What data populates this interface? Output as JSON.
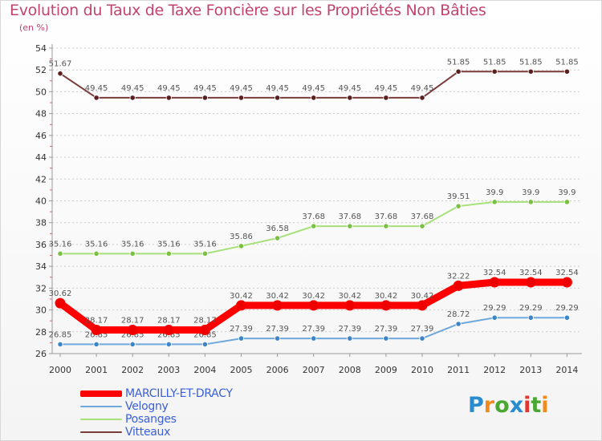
{
  "chart_data": {
    "type": "line",
    "title": "Evolution du Taux de Taxe Foncière sur les Propriétés Non Bâties",
    "ylabel": "(en %)",
    "xlabel": "",
    "categories": [
      "2000",
      "2001",
      "2002",
      "2003",
      "2004",
      "2005",
      "2006",
      "2007",
      "2008",
      "2009",
      "2010",
      "2011",
      "2012",
      "2013",
      "2014"
    ],
    "ylim": [
      26,
      54
    ],
    "yticks": [
      26,
      28,
      30,
      32,
      34,
      36,
      38,
      40,
      42,
      44,
      46,
      48,
      50,
      52,
      54
    ],
    "grid": "horizontal dashed",
    "legend_position": "bottom-left",
    "series": [
      {
        "name": "MARCILLY-ET-DRACY",
        "color": "#ff0000",
        "marker": "#ee0000",
        "values": [
          30.62,
          28.17,
          28.17,
          28.17,
          28.17,
          30.42,
          30.42,
          30.42,
          30.42,
          30.42,
          30.42,
          32.22,
          32.54,
          32.54,
          32.54
        ],
        "labels": [
          "30.62",
          "28.17",
          "28.17",
          "28.17",
          "28.17",
          "30.42",
          "30.42",
          "30.42",
          "30.42",
          "30.42",
          "30.42",
          "32.22",
          "32.54",
          "32.54",
          "32.54"
        ]
      },
      {
        "name": "Velogny",
        "color": "#6fa8dc",
        "marker": "#3d85c6",
        "values": [
          26.85,
          26.85,
          26.85,
          26.85,
          26.85,
          27.39,
          27.39,
          27.39,
          27.39,
          27.39,
          27.39,
          28.72,
          29.29,
          29.29,
          29.29
        ],
        "labels": [
          "26.85",
          "26.85",
          "26.85",
          "26.85",
          "26.85",
          "27.39",
          "27.39",
          "27.39",
          "27.39",
          "27.39",
          "27.39",
          "28.72",
          "29.29",
          "29.29",
          "29.29"
        ]
      },
      {
        "name": "Posanges",
        "color": "#a8e07a",
        "marker": "#7ac143",
        "values": [
          35.16,
          35.16,
          35.16,
          35.16,
          35.16,
          35.86,
          36.58,
          37.68,
          37.68,
          37.68,
          37.68,
          39.51,
          39.9,
          39.9,
          39.9
        ],
        "labels": [
          "35.16",
          "35.16",
          "35.16",
          "35.16",
          "35.16",
          "35.86",
          "36.58",
          "37.68",
          "37.68",
          "37.68",
          "37.68",
          "39.51",
          "39.9",
          "39.9",
          "39.9"
        ]
      },
      {
        "name": "Vitteaux",
        "color": "#7a3b3b",
        "marker": "#5a2020",
        "values": [
          51.67,
          49.45,
          49.45,
          49.45,
          49.45,
          49.45,
          49.45,
          49.45,
          49.45,
          49.45,
          49.45,
          51.85,
          51.85,
          51.85,
          51.85
        ],
        "labels": [
          "51.67",
          "49.45",
          "49.45",
          "49.45",
          "49.45",
          "49.45",
          "49.45",
          "49.45",
          "49.45",
          "49.45",
          "49.45",
          "51.85",
          "51.85",
          "51.85",
          "51.85"
        ]
      }
    ]
  },
  "logo": {
    "text": "Proxiti",
    "letters": [
      "P",
      "r",
      "o",
      "x",
      "i",
      "t",
      "i"
    ],
    "colors": [
      "#2a8ccf",
      "#f08a1a",
      "#4aa832",
      "#2a8ccf",
      "#e2362e",
      "#4aa832",
      "#f08a1a"
    ]
  }
}
